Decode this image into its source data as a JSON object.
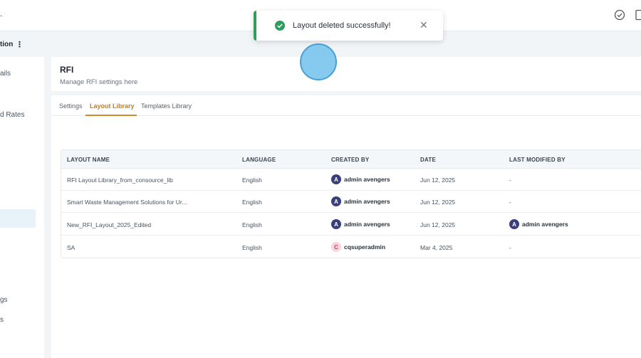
{
  "topbar": {
    "crumb": "."
  },
  "subbar": {
    "project": "tion",
    "kebab": "⋮"
  },
  "sidebar": {
    "items": [
      {
        "label": "ails"
      },
      {
        "label": "d Rates"
      },
      {
        "label": "gs"
      },
      {
        "label": "s"
      }
    ]
  },
  "header": {
    "title": "RFI",
    "subtitle": "Manage RFI settings here"
  },
  "tabs": [
    {
      "label": "Settings"
    },
    {
      "label": "Layout Library"
    },
    {
      "label": "Templates Library"
    }
  ],
  "table": {
    "columns": [
      "LAYOUT NAME",
      "LANGUAGE",
      "CREATED BY",
      "DATE",
      "LAST MODIFIED BY"
    ],
    "rows": [
      {
        "name": "RFI Layout Library_from_consource_lib",
        "language": "English",
        "created_by": "admin avengers",
        "created_initial": "A",
        "date": "Jun 12, 2025",
        "modified": "-"
      },
      {
        "name": "Smart Waste Management Solutions for Ur...",
        "language": "English",
        "created_by": "admin avengers",
        "created_initial": "A",
        "date": "Jun 12, 2025",
        "modified": "-"
      },
      {
        "name": "New_RFI_Layout_2025_Edited",
        "language": "English",
        "created_by": "admin avengers",
        "created_initial": "A",
        "date": "Jun 12, 2025",
        "modified": "admin avengers",
        "modified_initial": "A"
      },
      {
        "name": "SA",
        "language": "English",
        "created_by": "cqsuperadmin",
        "created_initial": "C",
        "date": "Mar 4, 2025",
        "modified": "-"
      }
    ]
  },
  "toast": {
    "message": "Layout deleted successfully!",
    "close": "✕"
  },
  "colors": {
    "accent": "#d48a26",
    "success": "#2e9e5a",
    "avatar": "#3a3f7a"
  }
}
